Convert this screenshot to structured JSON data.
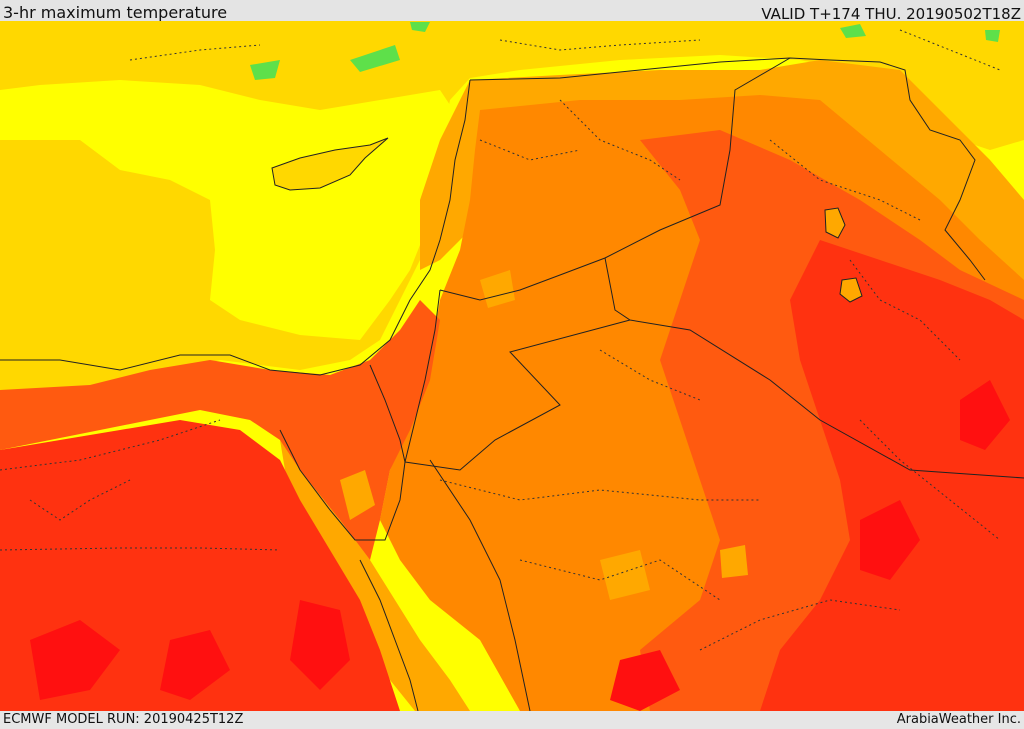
{
  "header": {
    "title": "3-hr maximum temperature",
    "valid": "VALID T+174 THU. 20190502T18Z"
  },
  "footer": {
    "model_run": "ECMWF MODEL RUN: 20190425T12Z",
    "credit": "ArabiaWeather Inc."
  },
  "map": {
    "fill_colors": {
      "green": "#5ee04a",
      "light_yellow": "#ffff00",
      "yellow": "#ffd800",
      "orange_light": "#ffa800",
      "orange": "#ff8800",
      "red_orange": "#ff5a10",
      "red": "#ff3210",
      "deep_red": "#ff1010"
    },
    "border_color": "#222222"
  }
}
